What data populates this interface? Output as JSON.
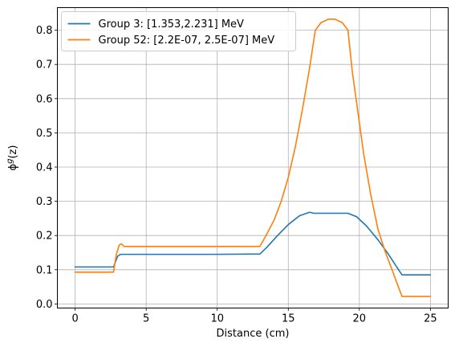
{
  "chart_data": {
    "type": "line",
    "xlabel": "Distance (cm)",
    "ylabel": "ϕ^g(z)",
    "xlim": [
      -1.25,
      26.25
    ],
    "ylim": [
      -0.012,
      0.866
    ],
    "xticks": [
      0,
      5,
      10,
      15,
      20,
      25
    ],
    "yticks": [
      0.0,
      0.1,
      0.2,
      0.3,
      0.4,
      0.5,
      0.6,
      0.7,
      0.8
    ],
    "grid": true,
    "legend_position": "top-left",
    "series": [
      {
        "name": "Group 3: [1.353,2.231] MeV",
        "color": "#1f77b4",
        "x": [
          0,
          2.7,
          3.0,
          3.2,
          5,
          10,
          13.0,
          13.5,
          14.2,
          15.0,
          15.8,
          16.5,
          16.8,
          19.2,
          19.8,
          20.5,
          21.3,
          22.0,
          22.6,
          23.0,
          25
        ],
        "y": [
          0.108,
          0.108,
          0.14,
          0.145,
          0.145,
          0.145,
          0.146,
          0.166,
          0.198,
          0.232,
          0.258,
          0.268,
          0.265,
          0.265,
          0.255,
          0.228,
          0.188,
          0.148,
          0.11,
          0.085,
          0.085
        ]
      },
      {
        "name": "Group 52: [2.2E-07, 2.5E-07] MeV",
        "color": "#ff7f0e",
        "x": [
          0,
          2.7,
          2.9,
          3.1,
          3.25,
          3.45,
          5,
          10,
          13.0,
          13.5,
          14.0,
          14.5,
          15.0,
          15.5,
          16.0,
          16.5,
          16.9,
          17.3,
          17.8,
          18.3,
          18.8,
          19.2,
          19.5,
          19.9,
          20.3,
          20.8,
          21.3,
          21.8,
          22.3,
          22.7,
          23.0,
          25
        ],
        "y": [
          0.093,
          0.093,
          0.145,
          0.172,
          0.176,
          0.168,
          0.168,
          0.168,
          0.168,
          0.205,
          0.245,
          0.3,
          0.37,
          0.46,
          0.57,
          0.69,
          0.8,
          0.822,
          0.832,
          0.832,
          0.822,
          0.8,
          0.68,
          0.56,
          0.44,
          0.32,
          0.22,
          0.155,
          0.1,
          0.055,
          0.022,
          0.022
        ]
      }
    ]
  }
}
